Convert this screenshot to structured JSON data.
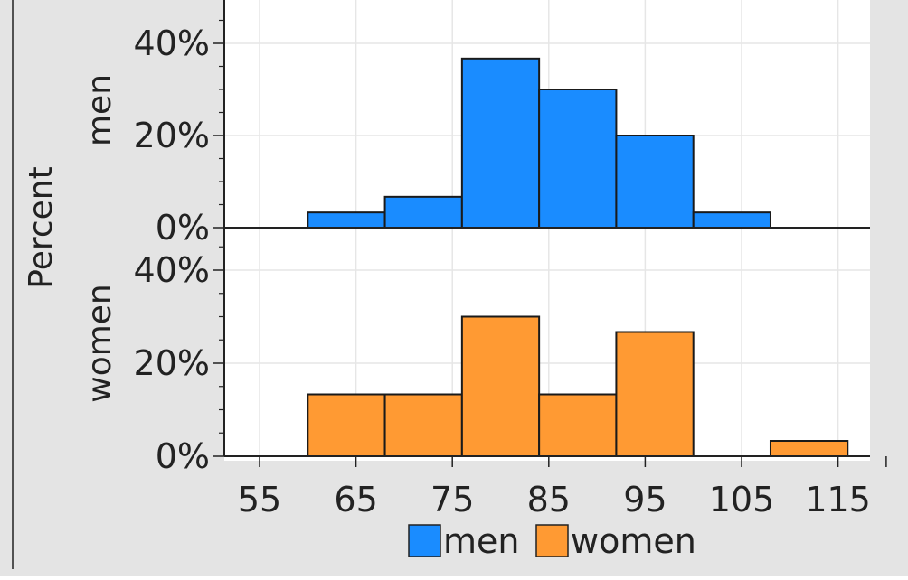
{
  "chart_data": {
    "type": "bar",
    "subtype": "faceted-histogram",
    "ylabel": "Percent",
    "xticks": [
      "55",
      "65",
      "75",
      "85",
      "95",
      "105",
      "115"
    ],
    "yticks": [
      "0%",
      "20%",
      "40%"
    ],
    "ylim": [
      0,
      45
    ],
    "bin_edges": [
      60,
      68,
      76,
      84,
      92,
      100,
      108,
      116
    ],
    "grid": true,
    "legend_position": "bottom",
    "series": [
      {
        "name": "men",
        "color": "#1a8cff",
        "values": [
          3.3,
          6.7,
          36.7,
          30.0,
          20.0,
          3.3,
          0
        ]
      },
      {
        "name": "women",
        "color": "#ff9a33",
        "values": [
          13.3,
          13.3,
          30.0,
          13.3,
          26.7,
          0,
          3.3
        ]
      }
    ]
  }
}
